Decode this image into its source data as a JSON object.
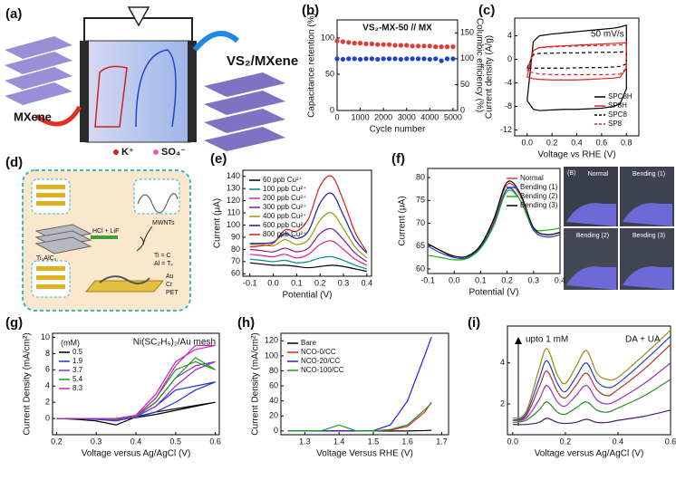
{
  "panel_labels": [
    "(a)",
    "(b)",
    "(c)",
    "(d)",
    "(e)",
    "(f)",
    "(g)",
    "(h)",
    "(i)"
  ],
  "schematic_a": {
    "left_label": "MXene",
    "right_label": "VS₂/MXene",
    "cation": "K⁺",
    "anion": "SO₄⁻"
  },
  "schematic_d": {
    "precursor": "Ti₃AlC₂",
    "etchant": "HCl + LiF",
    "nanotubes": "MWNTs",
    "legend_ti": "Ti = C",
    "legend_al": "Al = Tₓ",
    "layer_au": "Au",
    "layer_cr": "Cr",
    "layer_pet": "PET"
  },
  "photos_f": {
    "tag": "(B)",
    "labels": [
      "Normal",
      "Bending (1)",
      "Bending (2)",
      "Bending (3)"
    ]
  },
  "chart_data": [
    {
      "type": "scatter",
      "title": "VS₂-MX-50 // MX",
      "x_label": "Cycle number",
      "y_label": "Capacitance retention (%)",
      "y2_label": "Columbic efficiency (%)",
      "x": [
        0,
        250,
        500,
        750,
        1000,
        1250,
        1500,
        1750,
        2000,
        2250,
        2500,
        2750,
        3000,
        3250,
        3500,
        3750,
        4000,
        4250,
        4500,
        4750,
        5000
      ],
      "xlim": [
        0,
        5200
      ],
      "xticks": [
        0,
        1000,
        2000,
        3000,
        4000,
        5000
      ],
      "ylim": [
        0,
        125
      ],
      "yticks": [
        0,
        50,
        100
      ],
      "y2lim": [
        0,
        175
      ],
      "y2ticks": [
        0,
        50,
        100,
        150
      ],
      "series": [
        {
          "name": "Capacitance retention",
          "color": "#e53935",
          "values": [
            96,
            95,
            94,
            93,
            93,
            92,
            92,
            91,
            91,
            91,
            90,
            90,
            90,
            89,
            89,
            89,
            89,
            88,
            88,
            88,
            88
          ]
        },
        {
          "name": "Columbic efficiency",
          "color": "#1e3fd8",
          "axis": "y2",
          "values": [
            100,
            99,
            100,
            100,
            99,
            100,
            100,
            99,
            100,
            100,
            100,
            99,
            100,
            100,
            100,
            100,
            99,
            100,
            96,
            100,
            100
          ]
        }
      ]
    },
    {
      "type": "line",
      "x_label": "Voltage vs RHE (V)",
      "y_label": "Current density (A/g)",
      "annotations": [
        "50 mV/s"
      ],
      "legend": "lower right",
      "x": [
        0,
        0.05,
        0.1,
        0.2,
        0.3,
        0.4,
        0.5,
        0.6,
        0.7,
        0.75,
        0.8,
        0.8,
        0.75,
        0.7,
        0.6,
        0.5,
        0.4,
        0.3,
        0.2,
        0.1,
        0.05,
        0
      ],
      "xlim": [
        -0.1,
        0.9
      ],
      "xticks": [
        {
          "value": 0,
          "label": "0.0"
        },
        0.2,
        0.4,
        0.6,
        0.8
      ],
      "ylim": [
        -13,
        7
      ],
      "yticks": [
        -12,
        -8,
        -4,
        0,
        4
      ],
      "series": [
        {
          "name": "SPC8H",
          "color": "#000000",
          "values": [
            -7,
            3,
            4,
            4.3,
            4.5,
            4.7,
            4.9,
            5.1,
            5.3,
            5.5,
            5.8,
            -5,
            -7.5,
            -8,
            -8.3,
            -8.4,
            -8.5,
            -8.5,
            -8.6,
            -8.7,
            -8.5,
            -7
          ]
        },
        {
          "name": "SP8H",
          "color": "#e02020",
          "values": [
            -3,
            1.5,
            2,
            2.2,
            2.3,
            2.4,
            2.5,
            2.6,
            2.7,
            2.75,
            2.8,
            -1.5,
            -3,
            -3.2,
            -3.3,
            -3.4,
            -3.5,
            -3.5,
            -3.5,
            -3.4,
            -3.3,
            -3
          ]
        },
        {
          "name": "SPC8",
          "color": "#000000",
          "dash": true,
          "values": [
            -1.5,
            0.8,
            1,
            1.05,
            1.1,
            1.1,
            1.15,
            1.2,
            1.2,
            1.25,
            1.3,
            -0.8,
            -1.2,
            -1.3,
            -1.4,
            -1.4,
            -1.45,
            -1.5,
            -1.5,
            -1.5,
            -1.5,
            -1.5
          ]
        },
        {
          "name": "SP8",
          "color": "#e02020",
          "dash": true,
          "values": [
            -2,
            1.5,
            2,
            2.1,
            2.2,
            2.25,
            2.3,
            2.35,
            2.4,
            2.45,
            2.5,
            -1.5,
            -2.5,
            -2.55,
            -2.6,
            -2.6,
            -2.6,
            -2.6,
            -2.6,
            -2.5,
            -2.3,
            -2
          ]
        }
      ]
    },
    {
      "type": "line",
      "x_label": "Potential (V)",
      "y_label": "Current (μA)",
      "legend": "upper left",
      "x": [
        -0.1,
        -0.05,
        0,
        0.05,
        0.1,
        0.15,
        0.2,
        0.25,
        0.3,
        0.35,
        0.4
      ],
      "xlim": [
        -0.13,
        0.42
      ],
      "xticks": [
        -0.1,
        {
          "value": 0,
          "label": "0.0"
        },
        0.1,
        0.2,
        0.3,
        0.4
      ],
      "ylim": [
        58,
        145
      ],
      "yticks": [
        60,
        70,
        80,
        90,
        100,
        110,
        120,
        130,
        140
      ],
      "series": [
        {
          "name": "60 ppb Cu²⁺",
          "color": "#000000",
          "values": [
            69,
            68,
            67,
            67,
            66,
            65,
            66,
            67,
            66,
            64,
            62
          ]
        },
        {
          "name": "100 ppb Cu²⁺",
          "color": "#008b8b",
          "values": [
            72,
            71,
            70,
            71,
            69,
            70,
            73,
            74,
            71,
            67,
            64
          ]
        },
        {
          "name": "200 ppb Cu²⁺",
          "color": "#e0209a",
          "values": [
            76,
            75,
            74,
            76,
            73,
            76,
            84,
            87,
            80,
            72,
            67
          ]
        },
        {
          "name": "300 ppb Cu²⁺",
          "color": "#7b1fa2",
          "values": [
            80,
            79,
            78,
            81,
            78,
            81,
            93,
            97,
            88,
            77,
            70
          ]
        },
        {
          "name": "400 ppb Cu²⁺",
          "color": "#9a9a00",
          "values": [
            84,
            84,
            83,
            88,
            84,
            88,
            104,
            110,
            97,
            82,
            73
          ]
        },
        {
          "name": "600 ppb Cu²⁺",
          "color": "#1a1aa0",
          "values": [
            85,
            85,
            86,
            93,
            89,
            95,
            118,
            126,
            108,
            88,
            77
          ]
        },
        {
          "name": "800 ppb Cu²⁺",
          "color": "#d62020",
          "values": [
            82,
            83,
            85,
            96,
            95,
            105,
            132,
            140,
            120,
            94,
            78
          ]
        }
      ]
    },
    {
      "type": "line",
      "x_label": "Potential (V)",
      "y_label": "Current (μA)",
      "legend": "upper right",
      "x": [
        -0.1,
        -0.05,
        0,
        0.05,
        0.1,
        0.15,
        0.2,
        0.25,
        0.3,
        0.35,
        0.4
      ],
      "xlim": [
        -0.1,
        0.4
      ],
      "xticks": [
        -0.1,
        {
          "value": 0,
          "label": "0.0"
        },
        0.1,
        0.2,
        0.3,
        0.4
      ],
      "ylim": [
        59,
        82
      ],
      "yticks": [
        60,
        65,
        70,
        75,
        80
      ],
      "series": [
        {
          "name": "Normal",
          "color": "#e53935",
          "values": [
            65.5,
            64,
            62.5,
            62.5,
            65,
            70.5,
            78.5,
            76,
            69,
            67.5,
            68
          ]
        },
        {
          "name": "Bending (1)",
          "color": "#1e40d0",
          "values": [
            65,
            63.5,
            62.5,
            62.5,
            64.8,
            70,
            77.5,
            75,
            68.5,
            67,
            67.5
          ]
        },
        {
          "name": "Bending (2)",
          "color": "#18b018",
          "values": [
            63,
            62.5,
            62,
            62.3,
            64.5,
            69.5,
            77,
            75,
            69,
            68.5,
            69
          ]
        },
        {
          "name": "Bending (3)",
          "color": "#000000",
          "values": [
            65.5,
            64,
            62.8,
            62.8,
            65.2,
            71,
            79,
            76.5,
            69,
            67.5,
            68
          ]
        }
      ]
    },
    {
      "type": "line",
      "title": "Ni(SC₂H₅)₂/Au mesh",
      "legend_title": "(mM)",
      "legend": "upper left",
      "x_label": "Voltage versus Ag/AgCl (V)",
      "y_label": "Current Density (mA/cm²)",
      "x": [
        0.2,
        0.25,
        0.3,
        0.35,
        0.4,
        0.45,
        0.5,
        0.55,
        0.6,
        0.6,
        0.55,
        0.5,
        0.45,
        0.4,
        0.35,
        0.3,
        0.25,
        0.2
      ],
      "xlim": [
        0.19,
        0.61
      ],
      "xticks": [
        0.2,
        0.3,
        0.4,
        0.5,
        0.6
      ],
      "ylim": [
        -2,
        10.5
      ],
      "yticks": [
        0,
        2,
        4,
        6,
        8,
        10
      ],
      "series": [
        {
          "name": "0.5",
          "color": "#000000",
          "values": [
            0,
            0,
            0,
            0,
            0.1,
            0.5,
            1,
            1.5,
            2,
            2,
            1.6,
            1.2,
            0.8,
            0.2,
            -0.8,
            -0.3,
            -0.1,
            0
          ]
        },
        {
          "name": "1.9",
          "color": "#2030e0",
          "values": [
            0,
            0,
            0,
            0,
            0.1,
            0.8,
            2,
            3.5,
            4.5,
            4.5,
            4,
            3.5,
            1.5,
            0.2,
            -0.3,
            -0.1,
            0,
            0
          ]
        },
        {
          "name": "3.7",
          "color": "#8a2be2",
          "values": [
            0,
            0,
            0,
            0,
            0.2,
            1.5,
            4,
            6,
            7,
            7,
            6.5,
            5,
            2,
            0.3,
            -0.2,
            0,
            0,
            0
          ]
        },
        {
          "name": "5.4",
          "color": "#1a9a1a",
          "values": [
            0,
            0,
            0,
            0,
            0.2,
            2,
            5,
            7.5,
            6,
            6,
            7,
            6,
            2.5,
            0.3,
            -0.1,
            0,
            0,
            0
          ]
        },
        {
          "name": "8.3",
          "color": "#d020c0",
          "values": [
            0,
            0,
            0,
            0,
            0.3,
            2.5,
            6.5,
            9,
            9,
            9,
            8.5,
            7,
            3,
            0.4,
            0,
            0,
            0,
            0
          ]
        }
      ]
    },
    {
      "type": "line",
      "legend": "upper left",
      "x_label": "Voltage Versus RHE (V)",
      "y_label": "Current Density (mA/cm²)",
      "x": [
        1.25,
        1.3,
        1.35,
        1.4,
        1.45,
        1.5,
        1.55,
        1.6,
        1.65,
        1.67
      ],
      "xlim": [
        1.23,
        1.72
      ],
      "xticks": [
        1.3,
        1.4,
        1.5,
        1.6,
        1.7
      ],
      "ylim": [
        -5,
        130
      ],
      "yticks": [
        0,
        20,
        40,
        60,
        80,
        100,
        120
      ],
      "series": [
        {
          "name": "Bare",
          "color": "#000000",
          "values": [
            0,
            0,
            0,
            0,
            0,
            0,
            0,
            0,
            0.5,
            1
          ]
        },
        {
          "name": "NCO-0/CC",
          "color": "#e02020",
          "values": [
            0,
            0,
            0,
            0.5,
            0,
            0,
            1,
            6,
            25,
            38
          ]
        },
        {
          "name": "NCO-20/CC",
          "color": "#2020e0",
          "values": [
            0,
            0,
            0,
            0,
            0,
            0.5,
            8,
            40,
            100,
            125
          ]
        },
        {
          "name": "NCO-100/CC",
          "color": "#1a9a1a",
          "values": [
            0,
            0,
            0.5,
            8,
            0,
            0,
            2,
            8,
            28,
            37
          ]
        }
      ]
    },
    {
      "type": "line",
      "annotations": [
        "upto 1 mM",
        "DA + UA"
      ],
      "x_label": "Voltage versus Ag/AgCl (V)",
      "x": [
        0,
        0.05,
        0.1,
        0.13,
        0.17,
        0.2,
        0.24,
        0.28,
        0.32,
        0.36,
        0.4,
        0.5,
        0.6
      ],
      "xlim": [
        -0.02,
        0.6
      ],
      "xticks": [
        {
          "value": 0,
          "label": "0.0"
        },
        0.2,
        0.4,
        0.6
      ],
      "ylim": [
        0.5,
        5.8
      ],
      "yticks": [
        2,
        4
      ],
      "series": [
        {
          "color": "#4b1a6e",
          "values": [
            1,
            1,
            1.1,
            1.3,
            1.1,
            1.05,
            1.1,
            1.25,
            1.1,
            1.1,
            1.2,
            1.4,
            1.7
          ]
        },
        {
          "color": "#2e8b2e",
          "values": [
            1.1,
            1.2,
            1.7,
            2.1,
            1.6,
            1.5,
            1.8,
            2.1,
            1.7,
            1.6,
            1.8,
            2.4,
            3.2
          ]
        },
        {
          "color": "#9b30c8",
          "values": [
            1.2,
            1.3,
            2.2,
            2.9,
            2.1,
            1.9,
            2.4,
            2.9,
            2.2,
            2.0,
            2.2,
            3.0,
            4.0
          ]
        },
        {
          "color": "#b03030",
          "values": [
            1.2,
            1.4,
            2.8,
            3.6,
            2.6,
            2.3,
            2.9,
            3.5,
            2.7,
            2.4,
            2.7,
            3.7,
            4.9
          ]
        },
        {
          "color": "#2040c0",
          "values": [
            1.2,
            1.5,
            3.2,
            4.1,
            3.0,
            2.6,
            3.3,
            4.0,
            3.1,
            2.8,
            3.0,
            4.1,
            5.3
          ]
        },
        {
          "color": "#9a8a10",
          "values": [
            1.3,
            1.6,
            3.7,
            4.7,
            3.4,
            3.0,
            3.8,
            4.6,
            3.5,
            3.2,
            3.3,
            4.4,
            5.6
          ]
        }
      ]
    }
  ]
}
